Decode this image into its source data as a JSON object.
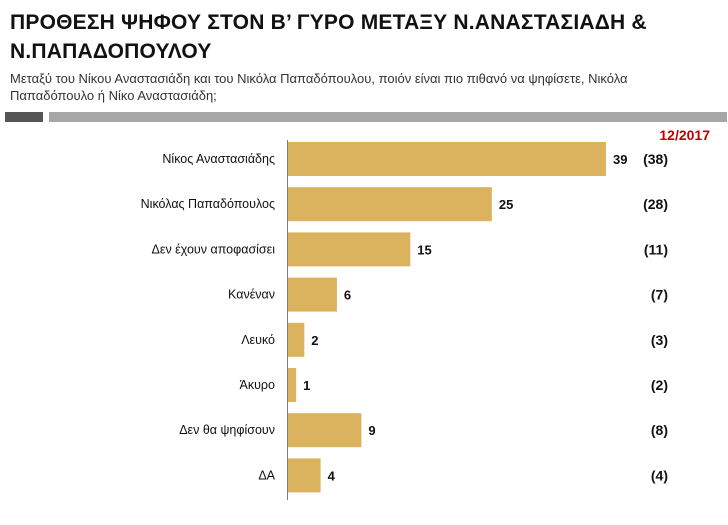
{
  "title": "ΠΡΟΘΕΣΗ ΨΗΦΟΥ ΣΤΟΝ Β’ ΓΥΡΟ ΜΕΤΑΞΥ Ν.ΑΝΑΣΤΑΣΙΑΔΗ & Ν.ΠΑΠΑΔΟΠΟΥΛΟΥ",
  "subtitle": "Μεταξύ του Νίκου Αναστασιάδη και του Νικόλα Παπαδόπουλου, ποιόν είναι πιο πιθανό να ψηφίσετε, Νικόλα Παπαδόπουλο ή Νίκο Αναστασιάδη;",
  "period_label": "12/2017",
  "colors": {
    "bar": "#dbb25e",
    "period": "#c00000",
    "rule_dark": "#555555",
    "rule_light": "#a6a6a6"
  },
  "chart_data": {
    "type": "bar",
    "orientation": "horizontal",
    "categories": [
      "Νίκος Αναστασιάδης",
      "Νικόλας Παπαδόπουλος",
      "Δεν έχουν αποφασίσει",
      "Κανέναν",
      "Λευκό",
      "Άκυρο",
      "Δεν θα ψηφίσουν",
      "ΔΑ"
    ],
    "series": [
      {
        "name": "12/2017",
        "values": [
          39,
          25,
          15,
          6,
          2,
          1,
          9,
          4
        ]
      }
    ],
    "previous_values": [
      "(38)",
      "(28)",
      "(11)",
      "(7)",
      "(3)",
      "(2)",
      "(8)",
      "(4)"
    ],
    "xlim": [
      0,
      39
    ]
  }
}
